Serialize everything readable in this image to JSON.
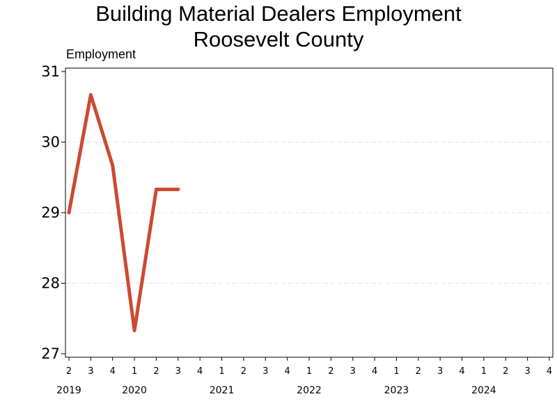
{
  "chart_data": {
    "type": "line",
    "title": "Building Material Dealers Employment",
    "subtitle": "Roosevelt County",
    "ylabel": "Employment",
    "xlabel": "",
    "ylim": [
      27,
      31
    ],
    "yticks": [
      27,
      28,
      29,
      30,
      31
    ],
    "grid": "horizontal-dashed",
    "x_quarters": [
      {
        "q": "2",
        "year": "2019"
      },
      {
        "q": "3",
        "year": "2019"
      },
      {
        "q": "4",
        "year": "2019"
      },
      {
        "q": "1",
        "year": "2020"
      },
      {
        "q": "2",
        "year": "2020"
      },
      {
        "q": "3",
        "year": "2020"
      },
      {
        "q": "4",
        "year": "2020"
      },
      {
        "q": "1",
        "year": "2021"
      },
      {
        "q": "2",
        "year": "2021"
      },
      {
        "q": "3",
        "year": "2021"
      },
      {
        "q": "4",
        "year": "2021"
      },
      {
        "q": "1",
        "year": "2022"
      },
      {
        "q": "2",
        "year": "2022"
      },
      {
        "q": "3",
        "year": "2022"
      },
      {
        "q": "4",
        "year": "2022"
      },
      {
        "q": "1",
        "year": "2023"
      },
      {
        "q": "2",
        "year": "2023"
      },
      {
        "q": "3",
        "year": "2023"
      },
      {
        "q": "4",
        "year": "2023"
      },
      {
        "q": "1",
        "year": "2024"
      },
      {
        "q": "2",
        "year": "2024"
      },
      {
        "q": "3",
        "year": "2024"
      },
      {
        "q": "4",
        "year": "2024"
      }
    ],
    "year_labels": [
      "2019",
      "2020",
      "2021",
      "2022",
      "2023",
      "2024"
    ],
    "series": [
      {
        "color": "#cc4a33",
        "points": [
          {
            "x": "2019 Q2",
            "y": 29.0
          },
          {
            "x": "2019 Q3",
            "y": 30.67
          },
          {
            "x": "2019 Q4",
            "y": 29.67
          },
          {
            "x": "2020 Q1",
            "y": 27.33
          },
          {
            "x": "2020 Q2",
            "y": 29.33
          },
          {
            "x": "2020 Q3",
            "y": 29.33
          }
        ]
      }
    ]
  }
}
